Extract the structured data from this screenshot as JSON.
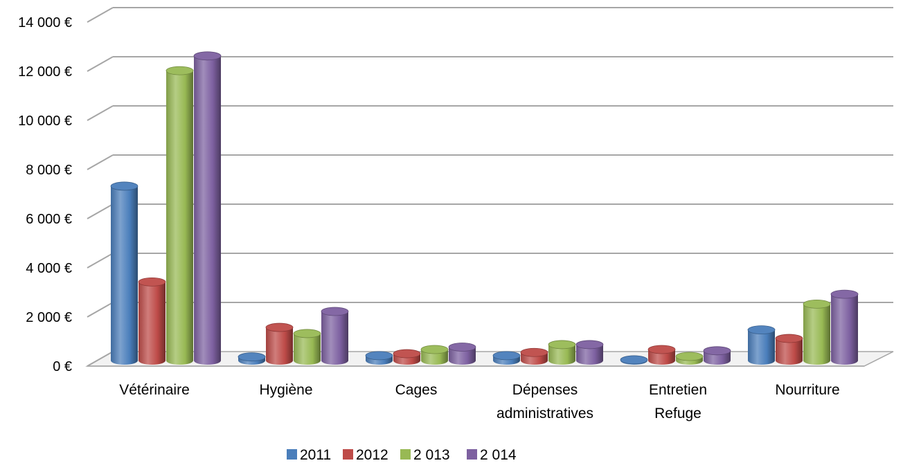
{
  "chart_data": {
    "type": "bar",
    "style": "3d-cylinder",
    "categories": [
      "Vétérinaire",
      "Hygiène",
      "Cages",
      "Dépenses administratives",
      "Entretien Refuge",
      "Nourriture"
    ],
    "category_lines": [
      [
        "Vétérinaire"
      ],
      [
        "Hygiène"
      ],
      [
        "Cages"
      ],
      [
        "Dépenses",
        "administratives"
      ],
      [
        "Entretien",
        "Refuge"
      ],
      [
        "Nourriture"
      ]
    ],
    "series": [
      {
        "name": "2011",
        "color": "#4a7ebb",
        "values": [
          7100,
          150,
          200,
          200,
          30,
          1250
        ]
      },
      {
        "name": "2012",
        "color": "#be4b48",
        "values": [
          3200,
          1350,
          280,
          330,
          450,
          900
        ]
      },
      {
        "name": "2 013",
        "color": "#98b954",
        "values": [
          11800,
          1100,
          450,
          650,
          170,
          2300
        ]
      },
      {
        "name": "2 014",
        "color": "#7d60a0",
        "values": [
          12400,
          2000,
          550,
          650,
          400,
          2700
        ]
      }
    ],
    "y_ticks": [
      0,
      2000,
      4000,
      6000,
      8000,
      10000,
      12000,
      14000
    ],
    "y_tick_labels": [
      "0 €",
      "2 000 €",
      "4 000 €",
      "6 000 €",
      "8 000 €",
      "10 000 €",
      "12 000 €",
      "14 000 €"
    ],
    "ylim": [
      0,
      14000
    ],
    "grid": true,
    "legend": "bottom",
    "title": "",
    "xlabel": "",
    "ylabel": ""
  }
}
